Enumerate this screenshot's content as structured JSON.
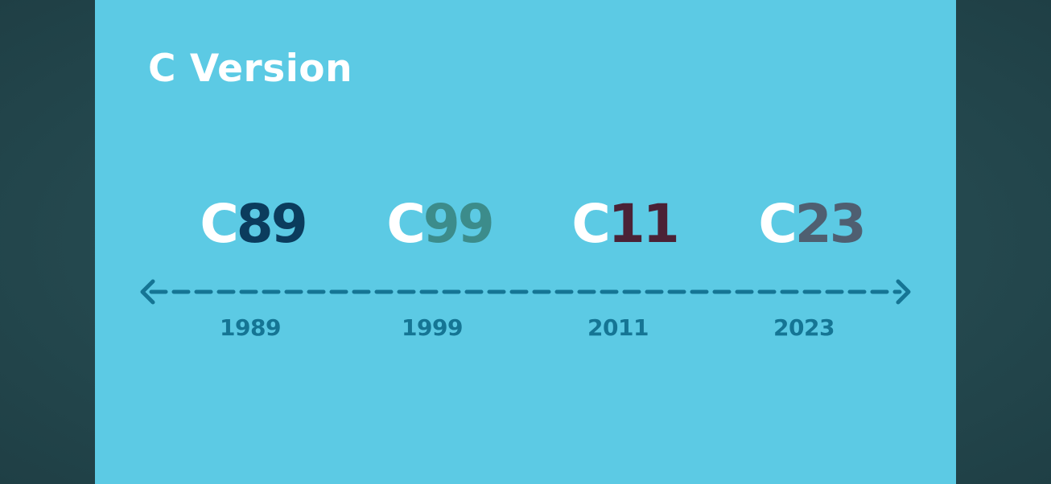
{
  "title": "C Version",
  "colors": {
    "outer_background": "#24484e",
    "slide_background": "#5ccae4",
    "prefix": "#ffffff",
    "timeline": "#157594",
    "year": "#157594"
  },
  "timeline": {
    "style": "dashed",
    "arrows": "both-ends",
    "items": [
      {
        "prefix": "C",
        "number": "89",
        "year": "1989",
        "number_color": "#0b3c5d"
      },
      {
        "prefix": "C",
        "number": "99",
        "year": "1999",
        "number_color": "#3c8c8b"
      },
      {
        "prefix": "C",
        "number": "11",
        "year": "2011",
        "number_color": "#4b2236"
      },
      {
        "prefix": "C",
        "number": "23",
        "year": "2023",
        "number_color": "#4f5f71"
      }
    ]
  }
}
